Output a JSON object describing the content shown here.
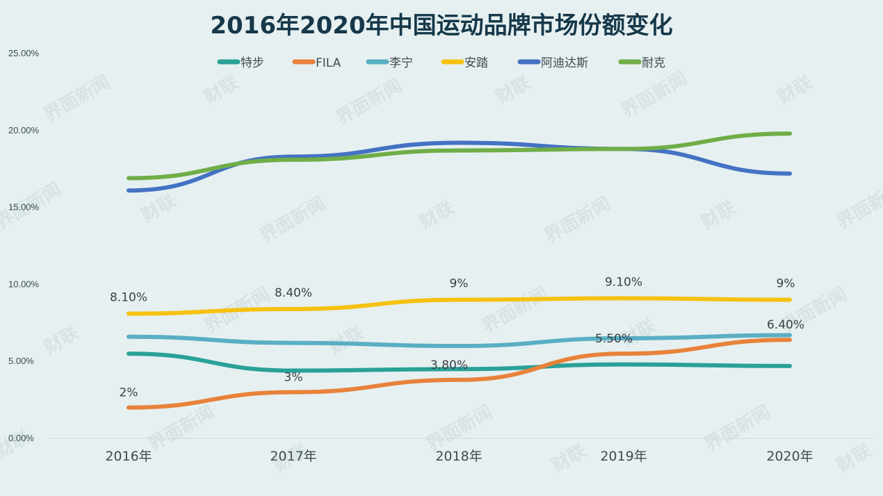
{
  "chart_data": {
    "type": "line",
    "title": "2016年2020年中国运动品牌市场份额变化",
    "categories": [
      "2016年",
      "2017年",
      "2018年",
      "2019年",
      "2020年"
    ],
    "ylim": [
      0,
      25
    ],
    "yticks": [
      "0.00%",
      "5.00%",
      "10.00%",
      "15.00%",
      "20.00%",
      "25.00%"
    ],
    "ytick_values": [
      0,
      5,
      10,
      15,
      20,
      25
    ],
    "legend_position": "top",
    "grid": false,
    "series": [
      {
        "name": "特步",
        "color": "#2aa198",
        "values": [
          5.5,
          4.4,
          4.5,
          4.8,
          4.7
        ],
        "labels": []
      },
      {
        "name": "FILA",
        "color": "#e8823a",
        "values": [
          2.0,
          3.0,
          3.8,
          5.5,
          6.4
        ],
        "labels": [
          "2%",
          "3%",
          "3.80%",
          "5.50%",
          "6.40%"
        ]
      },
      {
        "name": "李宁",
        "color": "#5aaec4",
        "values": [
          6.6,
          6.2,
          6.0,
          6.5,
          6.7
        ],
        "labels": []
      },
      {
        "name": "安踏",
        "color": "#f5c211",
        "values": [
          8.1,
          8.4,
          9.0,
          9.1,
          9.0
        ],
        "labels": [
          "8.10%",
          "8.40%",
          "9%",
          "9.10%",
          "9%"
        ]
      },
      {
        "name": "阿迪达斯",
        "color": "#4472c4",
        "values": [
          16.1,
          18.3,
          19.2,
          18.8,
          17.2
        ],
        "labels": []
      },
      {
        "name": "耐克",
        "color": "#70ad47",
        "values": [
          16.9,
          18.1,
          18.7,
          18.8,
          19.8
        ],
        "labels": []
      }
    ]
  },
  "watermark": {
    "icon_name": "jiemian-logo-icon",
    "texts": [
      "界面新闻",
      "财联"
    ]
  }
}
